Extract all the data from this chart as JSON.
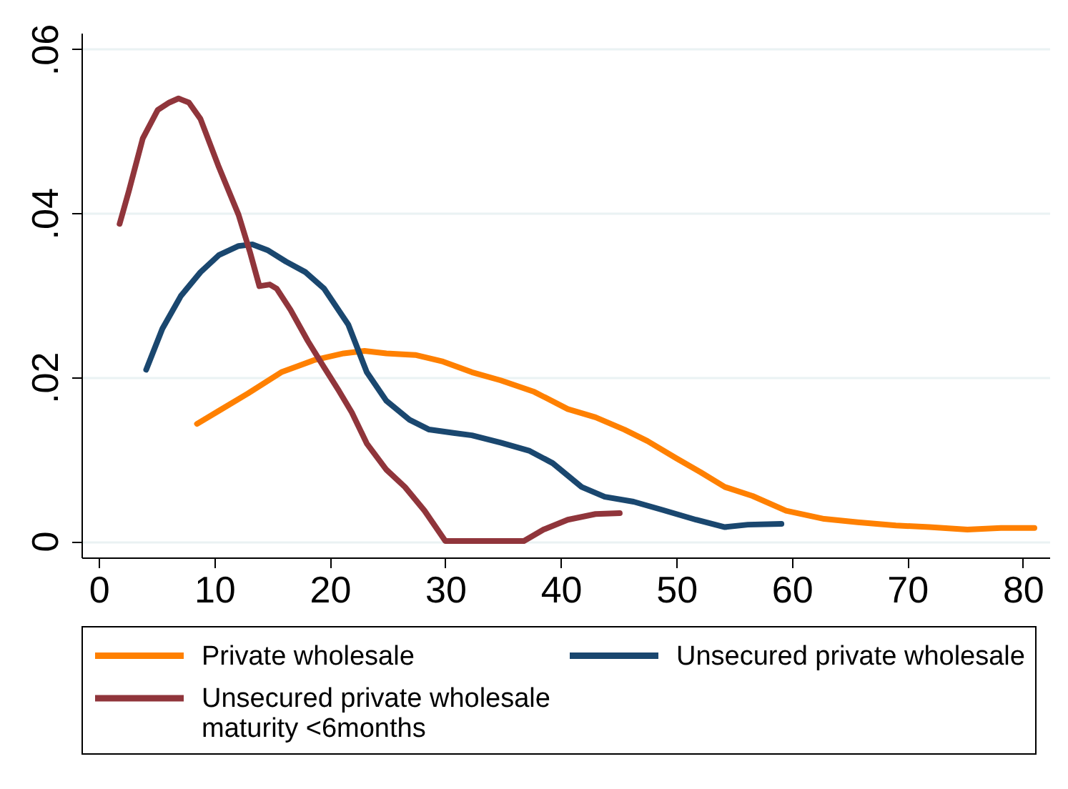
{
  "chart_data": {
    "type": "line",
    "xlim": [
      -1.5,
      82.3
    ],
    "xticks": [
      0,
      10,
      20,
      30,
      40,
      50,
      60,
      70,
      80
    ],
    "ylim": [
      -0.002,
      0.062
    ],
    "yticks": [
      0,
      {
        "value": 0.02,
        "label": ".02"
      },
      {
        "value": 0.04,
        "label": ".04"
      },
      {
        "value": 0.06,
        "label": ".06"
      }
    ],
    "grid": "y",
    "legend": "bottom",
    "line_style": "solid",
    "series": [
      {
        "name": "Private wholesale",
        "color": "#ff8000",
        "x": [
          8.5,
          10.4,
          12.9,
          15.8,
          18.7,
          21.2,
          23.0,
          24.9,
          27.4,
          29.8,
          32.3,
          34.8,
          37.7,
          40.6,
          43.0,
          45.5,
          47.5,
          50.0,
          52.1,
          54.2,
          56.6,
          59.5,
          62.8,
          65.7,
          69.0,
          71.9,
          75.2,
          78.1,
          81.0
        ],
        "values": [
          0.0143,
          0.0159,
          0.018,
          0.0206,
          0.0221,
          0.0229,
          0.0232,
          0.0229,
          0.0227,
          0.0219,
          0.0206,
          0.0196,
          0.0182,
          0.0161,
          0.0151,
          0.0136,
          0.0122,
          0.0101,
          0.0084,
          0.0066,
          0.0055,
          0.0037,
          0.0027,
          0.0023,
          0.0019,
          0.0017,
          0.0014,
          0.0016,
          0.0016
        ]
      },
      {
        "name": "Unsecured private wholesale",
        "color": "#1a476f",
        "x": [
          4.1,
          5.5,
          7.1,
          8.8,
          10.4,
          12.1,
          13.3,
          14.6,
          16.2,
          17.9,
          19.5,
          21.6,
          23.2,
          24.9,
          26.9,
          28.6,
          30.7,
          32.3,
          34.8,
          37.3,
          39.3,
          41.8,
          43.8,
          46.3,
          48.8,
          51.7,
          54.2,
          56.2,
          59.1
        ],
        "values": [
          0.0209,
          0.0259,
          0.0299,
          0.0328,
          0.0349,
          0.036,
          0.0362,
          0.0355,
          0.0341,
          0.0328,
          0.0308,
          0.0264,
          0.0206,
          0.0171,
          0.0148,
          0.0136,
          0.0132,
          0.0129,
          0.012,
          0.011,
          0.0095,
          0.0066,
          0.0054,
          0.0048,
          0.0038,
          0.0026,
          0.0017,
          0.002,
          0.0021
        ]
      },
      {
        "name": "Unsecured private wholesale maturity <6months",
        "color": "#90353b",
        "x": [
          1.8,
          2.6,
          3.8,
          5.1,
          6.1,
          6.9,
          7.8,
          8.8,
          10.4,
          12.1,
          13.1,
          13.9,
          14.8,
          15.4,
          16.6,
          18.1,
          19.5,
          20.8,
          21.9,
          23.2,
          24.9,
          26.5,
          28.2,
          30.0,
          36.8,
          38.5,
          40.6,
          43.0,
          45.1
        ],
        "values": [
          0.0387,
          0.0427,
          0.0491,
          0.0526,
          0.0535,
          0.054,
          0.0535,
          0.0515,
          0.0456,
          0.0398,
          0.0352,
          0.0311,
          0.0313,
          0.0308,
          0.0282,
          0.0244,
          0.0212,
          0.0183,
          0.0157,
          0.0119,
          0.0087,
          0.0066,
          0.0037,
          0,
          0,
          0.0014,
          0.0026,
          0.0033,
          0.0034
        ]
      }
    ]
  }
}
